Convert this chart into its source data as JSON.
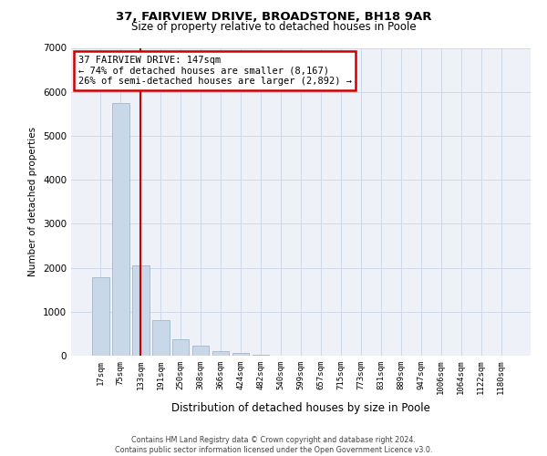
{
  "title1": "37, FAIRVIEW DRIVE, BROADSTONE, BH18 9AR",
  "title2": "Size of property relative to detached houses in Poole",
  "xlabel": "Distribution of detached houses by size in Poole",
  "ylabel": "Number of detached properties",
  "bar_labels": [
    "17sqm",
    "75sqm",
    "133sqm",
    "191sqm",
    "250sqm",
    "308sqm",
    "366sqm",
    "424sqm",
    "482sqm",
    "540sqm",
    "599sqm",
    "657sqm",
    "715sqm",
    "773sqm",
    "831sqm",
    "889sqm",
    "947sqm",
    "1006sqm",
    "1064sqm",
    "1122sqm",
    "1180sqm"
  ],
  "bar_values": [
    1780,
    5750,
    2060,
    810,
    370,
    230,
    110,
    60,
    30,
    10,
    5,
    2,
    1,
    0,
    0,
    0,
    0,
    0,
    0,
    0,
    0
  ],
  "bar_color": "#c8d8e8",
  "bar_edge_color": "#a0b8cc",
  "vline_x": 2,
  "vline_color": "#cc0000",
  "annotation_line1": "37 FAIRVIEW DRIVE: 147sqm",
  "annotation_line2": "← 74% of detached houses are smaller (8,167)",
  "annotation_line3": "26% of semi-detached houses are larger (2,892) →",
  "annotation_box_color": "#ffffff",
  "annotation_box_edge_color": "#cc0000",
  "ylim": [
    0,
    7000
  ],
  "yticks": [
    0,
    1000,
    2000,
    3000,
    4000,
    5000,
    6000,
    7000
  ],
  "grid_color": "#cdd8e8",
  "footer1": "Contains HM Land Registry data © Crown copyright and database right 2024.",
  "footer2": "Contains public sector information licensed under the Open Government Licence v3.0.",
  "bg_color": "#ffffff",
  "plot_bg_color": "#eef2f8"
}
